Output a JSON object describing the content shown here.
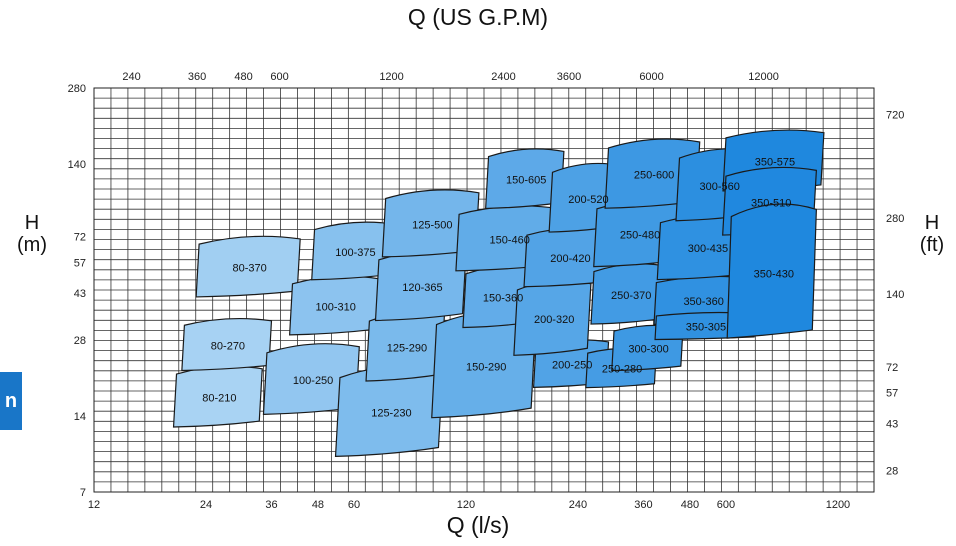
{
  "side_tab": {
    "text": "n",
    "color": "#1976c8"
  },
  "chart_data": {
    "type": "area",
    "title": "Q (US G.P.M)",
    "xlabel": "Q (l/s)",
    "ylabel_left": {
      "symbol": "H",
      "unit": "(m)"
    },
    "ylabel_right": {
      "symbol": "H",
      "unit": "(ft)"
    },
    "x_scale": "log",
    "y_scale": "log",
    "xlim": [
      12,
      1500
    ],
    "ylim": [
      7,
      280
    ],
    "grid": true,
    "x_ticks_bottom": [
      "12",
      "24",
      "36",
      "48",
      "60",
      "120",
      "240",
      "360",
      "480",
      "600",
      "1200"
    ],
    "x_ticks_top": [
      "240",
      "360",
      "480",
      "600",
      "1200",
      "2400",
      "3600",
      "6000",
      "12000"
    ],
    "y_ticks_left": [
      "7",
      "14",
      "28",
      "43",
      "57",
      "72",
      "140",
      "280"
    ],
    "y_ticks_right": [
      "28",
      "43",
      "57",
      "72",
      "140",
      "280",
      "720"
    ],
    "color_light": "#c8e4f8",
    "color_dark": "#0f7fdc",
    "series": [
      {
        "name": "80-210",
        "q_min": 20,
        "q_max": 34,
        "h_min": 12.5,
        "h_max": 22
      },
      {
        "name": "80-270",
        "q_min": 21,
        "q_max": 36,
        "h_min": 21,
        "h_max": 34
      },
      {
        "name": "80-370",
        "q_min": 23,
        "q_max": 43,
        "h_min": 41,
        "h_max": 72
      },
      {
        "name": "100-250",
        "q_min": 35,
        "q_max": 62,
        "h_min": 14,
        "h_max": 27
      },
      {
        "name": "100-310",
        "q_min": 41,
        "q_max": 70,
        "h_min": 29,
        "h_max": 50
      },
      {
        "name": "100-375",
        "q_min": 47,
        "q_max": 78,
        "h_min": 48,
        "h_max": 82
      },
      {
        "name": "125-230",
        "q_min": 55,
        "q_max": 104,
        "h_min": 9.5,
        "h_max": 22
      },
      {
        "name": "125-290",
        "q_min": 66,
        "q_max": 105,
        "h_min": 19,
        "h_max": 36
      },
      {
        "name": "120-365",
        "q_min": 70,
        "q_max": 120,
        "h_min": 33,
        "h_max": 63
      },
      {
        "name": "125-500",
        "q_min": 73,
        "q_max": 130,
        "h_min": 59,
        "h_max": 110
      },
      {
        "name": "150-290",
        "q_min": 100,
        "q_max": 185,
        "h_min": 13.5,
        "h_max": 36
      },
      {
        "name": "150-360",
        "q_min": 120,
        "q_max": 190,
        "h_min": 31,
        "h_max": 55
      },
      {
        "name": "150-460",
        "q_min": 115,
        "q_max": 215,
        "h_min": 52,
        "h_max": 95
      },
      {
        "name": "150-605",
        "q_min": 138,
        "q_max": 220,
        "h_min": 92,
        "h_max": 160
      },
      {
        "name": "200-250",
        "q_min": 185,
        "q_max": 290,
        "h_min": 18,
        "h_max": 28
      },
      {
        "name": "200-320",
        "q_min": 165,
        "q_max": 260,
        "h_min": 24,
        "h_max": 48
      },
      {
        "name": "200-420",
        "q_min": 175,
        "q_max": 300,
        "h_min": 45,
        "h_max": 78
      },
      {
        "name": "200-520",
        "q_min": 205,
        "q_max": 320,
        "h_min": 74,
        "h_max": 140
      },
      {
        "name": "250-280",
        "q_min": 255,
        "q_max": 390,
        "h_min": 18,
        "h_max": 26
      },
      {
        "name": "300-300",
        "q_min": 300,
        "q_max": 460,
        "h_min": 21,
        "h_max": 32
      },
      {
        "name": "250-370",
        "q_min": 265,
        "q_max": 420,
        "h_min": 32,
        "h_max": 56
      },
      {
        "name": "250-480",
        "q_min": 270,
        "q_max": 460,
        "h_min": 54,
        "h_max": 100
      },
      {
        "name": "250-600",
        "q_min": 290,
        "q_max": 510,
        "h_min": 92,
        "h_max": 175
      },
      {
        "name": "350-360",
        "q_min": 390,
        "q_max": 700,
        "h_min": 32,
        "h_max": 50
      },
      {
        "name": "350-305",
        "q_min": 390,
        "q_max": 720,
        "h_min": 28,
        "h_max": 36
      },
      {
        "name": "300-435",
        "q_min": 400,
        "q_max": 720,
        "h_min": 48,
        "h_max": 88
      },
      {
        "name": "300-560",
        "q_min": 450,
        "q_max": 740,
        "h_min": 82,
        "h_max": 160
      },
      {
        "name": "350-575",
        "q_min": 600,
        "q_max": 1100,
        "h_min": 108,
        "h_max": 190
      },
      {
        "name": "350-510",
        "q_min": 600,
        "q_max": 1050,
        "h_min": 72,
        "h_max": 135
      },
      {
        "name": "350-430",
        "q_min": 620,
        "q_max": 1050,
        "h_min": 28,
        "h_max": 95
      }
    ]
  }
}
